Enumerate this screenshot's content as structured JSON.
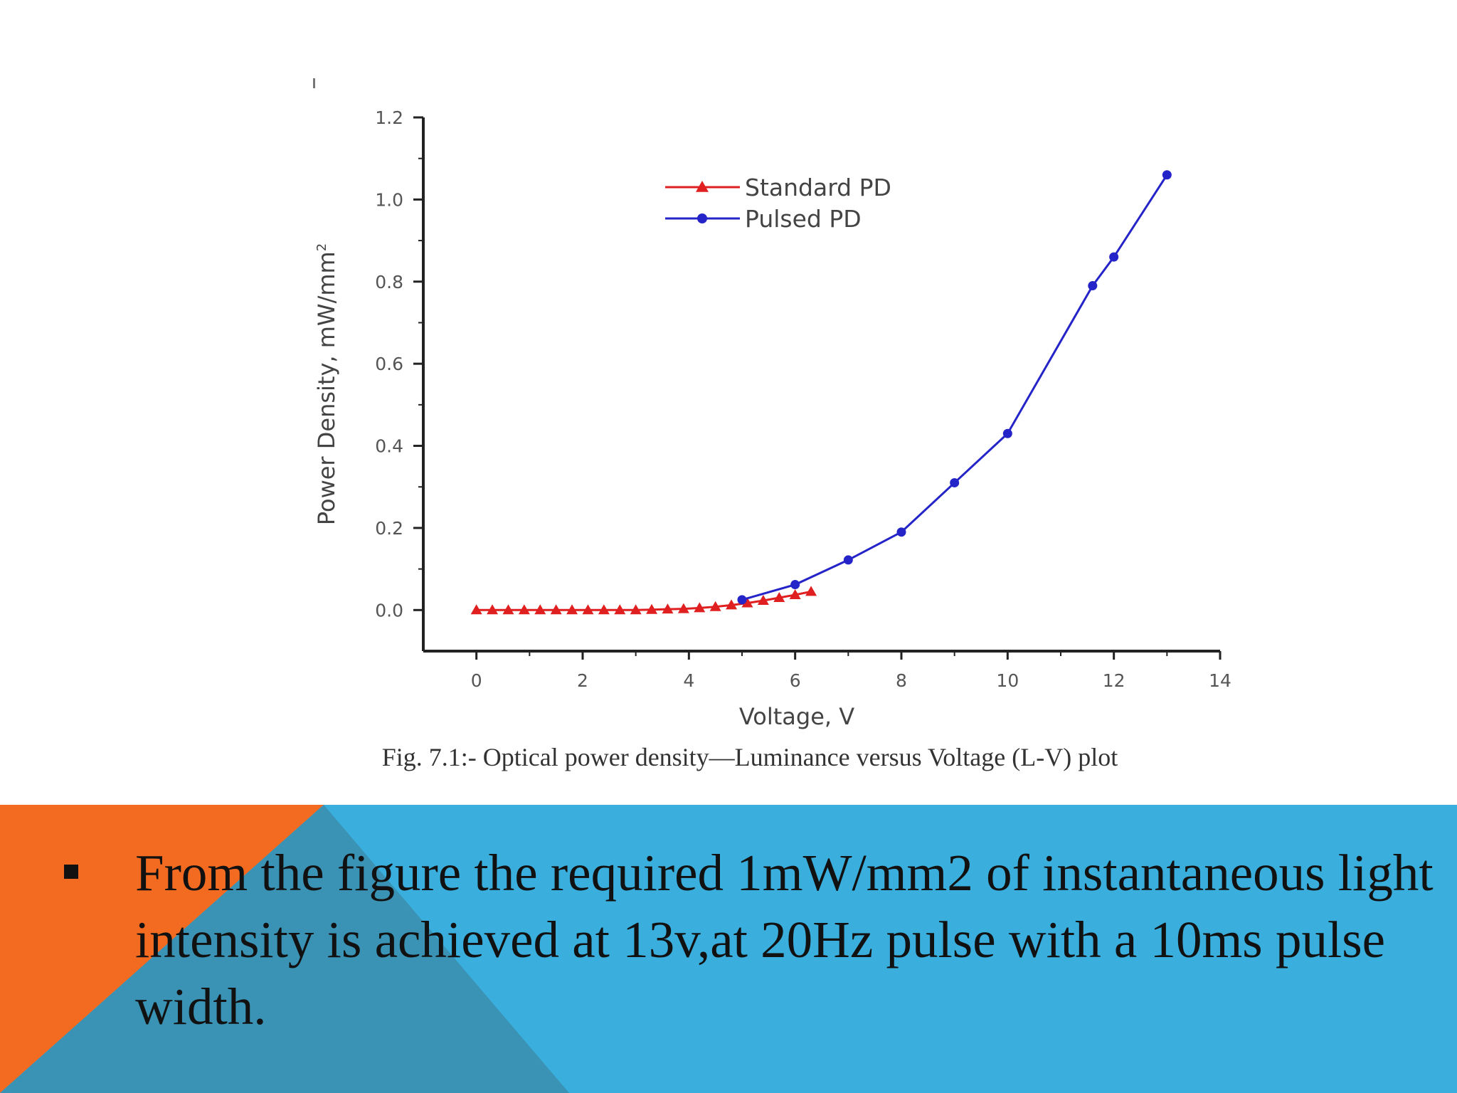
{
  "chart_data": {
    "type": "line",
    "title": "",
    "xlabel": "Voltage, V",
    "ylabel": "Power Density, mW/mm",
    "ylabel_superscript": "2",
    "xlim": [
      -1,
      14
    ],
    "ylim": [
      -0.1,
      1.2
    ],
    "x_ticks": [
      0,
      2,
      4,
      6,
      8,
      10,
      12,
      14
    ],
    "x_tick_labels": [
      "0",
      "2",
      "4",
      "6",
      "8",
      "10",
      "12",
      "14"
    ],
    "y_ticks": [
      0.0,
      0.2,
      0.4,
      0.6,
      0.8,
      1.0,
      1.2
    ],
    "y_tick_labels": [
      "0.0",
      "0.2",
      "0.4",
      "0.6",
      "0.8",
      "1.0",
      "1.2"
    ],
    "legend_position": "top-center",
    "series": [
      {
        "name": "Standard PD",
        "color": "#e02020",
        "marker": "triangle",
        "x": [
          0,
          0.3,
          0.6,
          0.9,
          1.2,
          1.5,
          1.8,
          2.1,
          2.4,
          2.7,
          3.0,
          3.3,
          3.6,
          3.9,
          4.2,
          4.5,
          4.8,
          5.1,
          5.4,
          5.7,
          6.0,
          6.3
        ],
        "y": [
          0.0,
          0.0,
          0.0,
          0.0,
          0.0,
          0.0,
          0.0,
          0.0,
          0.0,
          0.0,
          0.0,
          0.001,
          0.002,
          0.003,
          0.005,
          0.008,
          0.012,
          0.017,
          0.023,
          0.03,
          0.037,
          0.045
        ]
      },
      {
        "name": "Pulsed PD",
        "color": "#2424c8",
        "marker": "circle",
        "x": [
          5,
          6,
          7,
          8,
          9,
          10,
          11.6,
          12,
          13
        ],
        "y": [
          0.025,
          0.062,
          0.122,
          0.19,
          0.31,
          0.43,
          0.79,
          0.86,
          1.06
        ]
      }
    ]
  },
  "figure_caption": "Fig. 7.1:- Optical power density—Luminance versus Voltage (L-V) plot",
  "bullet_text": "From the figure the required 1mW/mm2 of instantaneous light intensity is achieved at 13v,at 20Hz pulse with a 10ms pulse width.",
  "colors": {
    "footer_blue": "#3aaedc",
    "footer_orange": "#f26b21",
    "footer_dark_blue": "#3a92b4"
  }
}
